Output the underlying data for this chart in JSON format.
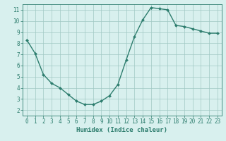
{
  "x": [
    0,
    1,
    2,
    3,
    4,
    5,
    6,
    7,
    8,
    9,
    10,
    11,
    12,
    13,
    14,
    15,
    16,
    17,
    18,
    19,
    20,
    21,
    22,
    23
  ],
  "y": [
    8.3,
    7.1,
    5.2,
    4.4,
    4.0,
    3.4,
    2.8,
    2.5,
    2.5,
    2.8,
    3.3,
    4.3,
    6.5,
    8.6,
    10.1,
    11.2,
    11.1,
    11.0,
    9.6,
    9.5,
    9.3,
    9.1,
    8.9,
    8.9
  ],
  "line_color": "#2d7d6e",
  "marker": "D",
  "marker_size": 2,
  "bg_color": "#d8f0ee",
  "grid_color": "#a0c8c4",
  "xlabel": "Humidex (Indice chaleur)",
  "xlim": [
    -0.5,
    23.5
  ],
  "ylim": [
    1.5,
    11.5
  ],
  "yticks": [
    2,
    3,
    4,
    5,
    6,
    7,
    8,
    9,
    10,
    11
  ],
  "xticks": [
    0,
    1,
    2,
    3,
    4,
    5,
    6,
    7,
    8,
    9,
    10,
    11,
    12,
    13,
    14,
    15,
    16,
    17,
    18,
    19,
    20,
    21,
    22,
    23
  ],
  "tick_color": "#2d7d6e",
  "label_fontsize": 5.5,
  "axis_fontsize": 6.5,
  "line_width": 1.0
}
